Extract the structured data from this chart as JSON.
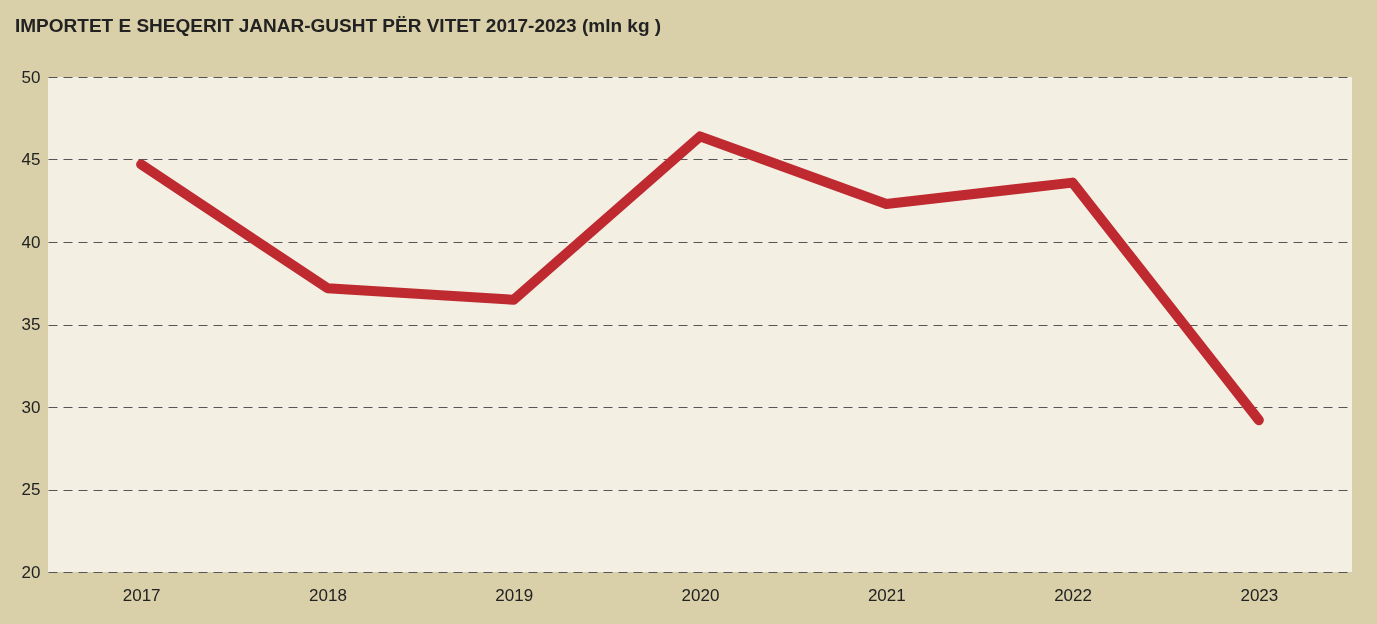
{
  "chart_data": {
    "type": "line",
    "title": "IMPORTET E SHEQERIT JANAR-GUSHT PËR VITET 2017-2023 (mln kg )",
    "categories": [
      "2017",
      "2018",
      "2019",
      "2020",
      "2021",
      "2022",
      "2023"
    ],
    "series": [
      {
        "color": "#be2a30",
        "values": [
          44.7,
          37.2,
          36.5,
          46.4,
          42.3,
          43.6,
          29.2
        ]
      }
    ],
    "ylim": [
      20,
      50
    ],
    "yticks": [
      20,
      25,
      30,
      35,
      40,
      45,
      50
    ],
    "grid": "y",
    "marker": "none",
    "line_style": "solid",
    "legend": false
  }
}
